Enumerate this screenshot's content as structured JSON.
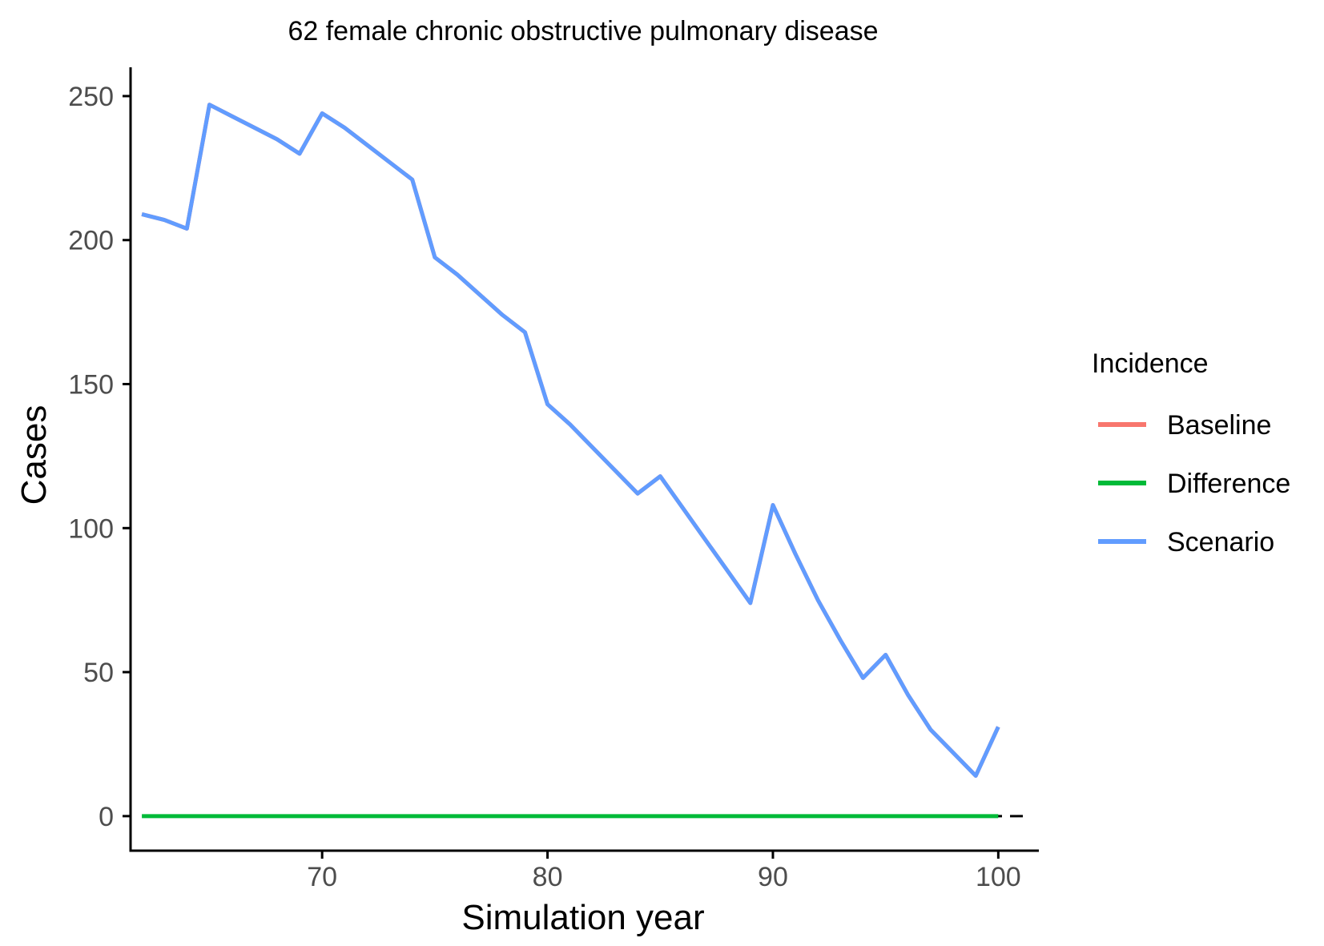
{
  "chart_data": {
    "type": "line",
    "title": "62 female chronic obstructive pulmonary disease",
    "xlabel": "Simulation year",
    "ylabel": "Cases",
    "xlim": [
      61.5,
      101.8
    ],
    "ylim": [
      -12,
      260
    ],
    "x_ticks": [
      70,
      80,
      90,
      100
    ],
    "y_ticks": [
      0,
      50,
      100,
      150,
      200,
      250
    ],
    "x_tick_labels": [
      "70",
      "80",
      "90",
      "100"
    ],
    "y_tick_labels": [
      "0",
      "50",
      "100",
      "150",
      "200",
      "250"
    ],
    "reference_line": {
      "y": 0,
      "style": "dashed",
      "color": "#000000"
    },
    "grid": false,
    "legend": {
      "title": "Incidence",
      "position": "right"
    },
    "x": [
      62,
      63,
      64,
      65,
      66,
      67,
      68,
      69,
      70,
      71,
      72,
      73,
      74,
      75,
      76,
      77,
      78,
      79,
      80,
      81,
      82,
      83,
      84,
      85,
      86,
      87,
      88,
      89,
      90,
      91,
      92,
      93,
      94,
      95,
      96,
      97,
      98,
      99,
      100
    ],
    "series": [
      {
        "name": "Baseline",
        "color": "#F8766D",
        "values": [
          209,
          207,
          204,
          247,
          243,
          239,
          235,
          230,
          244,
          239,
          233,
          227,
          221,
          194,
          188,
          181,
          174,
          168,
          143,
          136,
          128,
          120,
          112,
          118,
          107,
          96,
          85,
          74,
          108,
          91,
          75,
          61,
          48,
          56,
          42,
          30,
          22,
          14,
          31
        ]
      },
      {
        "name": "Difference",
        "color": "#00BA38",
        "values": [
          0,
          0,
          0,
          0,
          0,
          0,
          0,
          0,
          0,
          0,
          0,
          0,
          0,
          0,
          0,
          0,
          0,
          0,
          0,
          0,
          0,
          0,
          0,
          0,
          0,
          0,
          0,
          0,
          0,
          0,
          0,
          0,
          0,
          0,
          0,
          0,
          0,
          0,
          0
        ]
      },
      {
        "name": "Scenario",
        "color": "#619CFF",
        "values": [
          209,
          207,
          204,
          247,
          243,
          239,
          235,
          230,
          244,
          239,
          233,
          227,
          221,
          194,
          188,
          181,
          174,
          168,
          143,
          136,
          128,
          120,
          112,
          118,
          107,
          96,
          85,
          74,
          108,
          91,
          75,
          61,
          48,
          56,
          42,
          30,
          22,
          14,
          31
        ]
      }
    ]
  }
}
